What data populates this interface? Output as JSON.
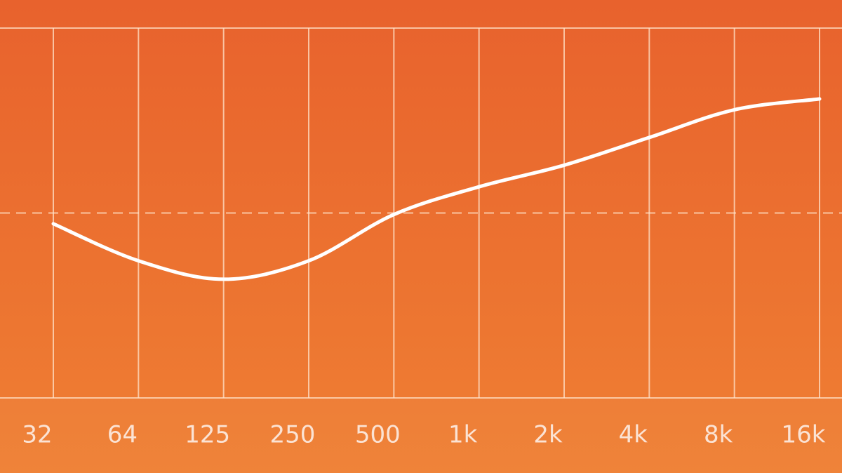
{
  "chart_data": {
    "type": "line",
    "categories": [
      "32",
      "64",
      "125",
      "250",
      "500",
      "1k",
      "2k",
      "4k",
      "8k",
      "16k"
    ],
    "values": [
      -0.7,
      -3.1,
      -4.3,
      -3.1,
      -0.1,
      1.7,
      3.1,
      4.9,
      6.7,
      7.4
    ],
    "color": "#ffffff",
    "ylim": [
      -12,
      12
    ]
  }
}
